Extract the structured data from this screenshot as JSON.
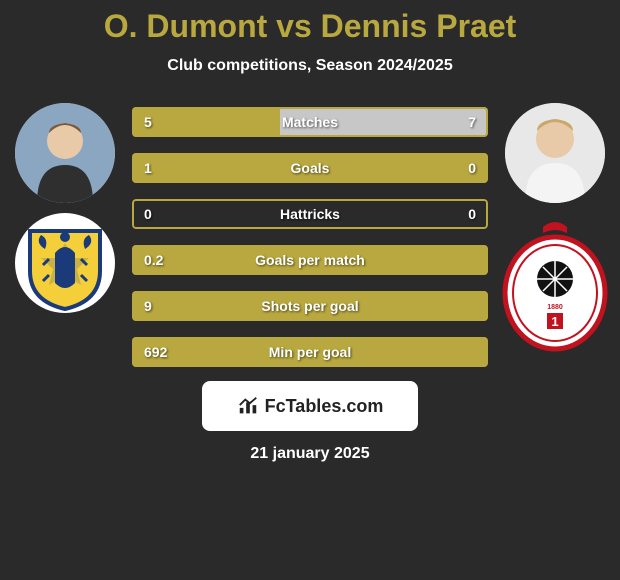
{
  "title_color": "#b9a83f",
  "player_left": "O. Dumont",
  "player_right": "Dennis Praet",
  "title_join": " vs ",
  "subtitle": "Club competitions, Season 2024/2025",
  "accent_left": "#b9a83f",
  "accent_right": "#c7c7c7",
  "border_color": "#b9a83f",
  "bg_color": "#2a2a2a",
  "stats": [
    {
      "label": "Matches",
      "left_val": "5",
      "right_val": "7",
      "left_pct": 41.7,
      "right_pct": 58.3
    },
    {
      "label": "Goals",
      "left_val": "1",
      "right_val": "0",
      "left_pct": 100,
      "right_pct": 0
    },
    {
      "label": "Hattricks",
      "left_val": "0",
      "right_val": "0",
      "left_pct": 0,
      "right_pct": 0
    },
    {
      "label": "Goals per match",
      "left_val": "0.2",
      "right_val": "",
      "left_pct": 100,
      "right_pct": 0
    },
    {
      "label": "Shots per goal",
      "left_val": "9",
      "right_val": "",
      "left_pct": 100,
      "right_pct": 0
    },
    {
      "label": "Min per goal",
      "left_val": "692",
      "right_val": "",
      "left_pct": 100,
      "right_pct": 0
    }
  ],
  "brand_text": "FcTables.com",
  "footer_date": "21 january 2025",
  "club_left": {
    "name": "Sint-Truiden",
    "bg": "#f4cf3a",
    "accent": "#1a3a7a"
  },
  "club_right": {
    "name": "Royal Antwerp",
    "bg": "#ffffff",
    "accent": "#c1121f"
  }
}
